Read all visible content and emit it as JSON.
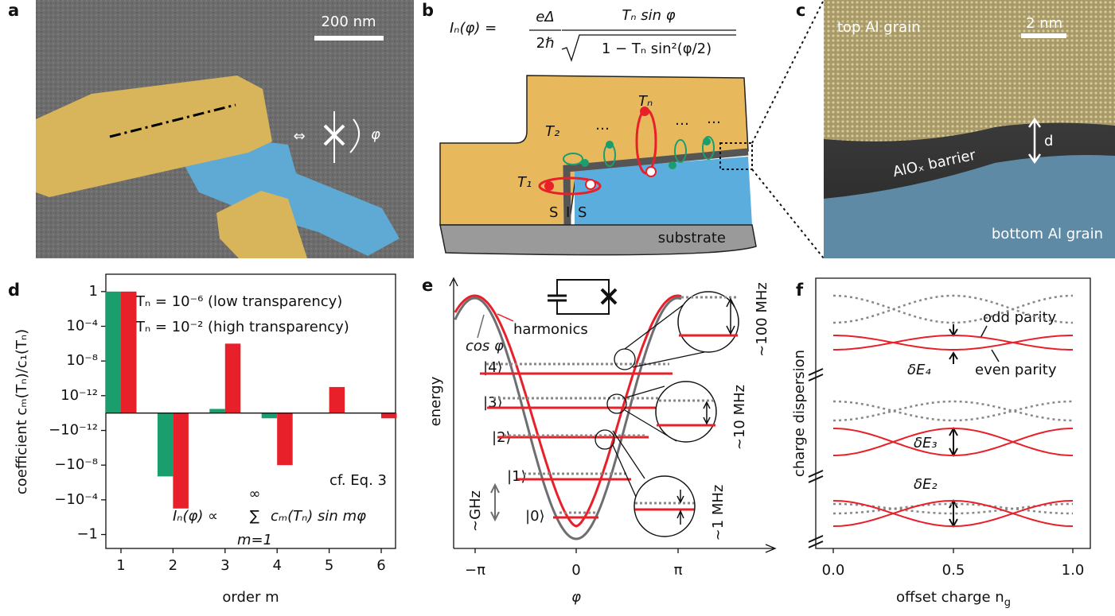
{
  "panel_labels": [
    "a",
    "b",
    "c",
    "d",
    "e",
    "f"
  ],
  "panel_a": {
    "scale_bar": "200 nm",
    "equiv": "⇔",
    "phase": "φ"
  },
  "panel_b": {
    "formula": {
      "lhs": "Iₙ(φ) =",
      "prefactor_num": "eΔ",
      "prefactor_den": "2ℏ",
      "num": "Tₙ sin φ",
      "den": "1 − Tₙ sin²(φ/2)"
    },
    "labels": {
      "t2": "T₂",
      "t1": "T₁",
      "tn": "Tₙ",
      "dots": "…",
      "s_left": "S",
      "i": "I",
      "s_right": "S",
      "substrate": "substrate"
    }
  },
  "panel_c": {
    "scale_bar": "2 nm",
    "top": "top Al grain",
    "barrier": "AlOₓ barrier",
    "bottom": "bottom Al grain",
    "thickness": "d"
  },
  "chart_data": {
    "type": "bar",
    "categories": [
      "1",
      "2",
      "3",
      "4",
      "5",
      "6"
    ],
    "series": [
      {
        "name": "Tₙ = 10⁻⁶ (low transparency)",
        "color": "#1a9e6e",
        "values": [
          1,
          -2e-07,
          2e-14,
          -3e-14,
          0,
          0
        ]
      },
      {
        "name": "Tₙ = 10⁻² (high transparency)",
        "color": "#e8202a",
        "values": [
          1,
          -0.001,
          1e-06,
          -1e-08,
          1e-11,
          -3e-14
        ]
      }
    ],
    "xlabel": "order m",
    "ylabel": "coefficient cₘ(Tₙ)/c₁(Tₙ)",
    "yscale": "symlog",
    "linthresh": 1e-14,
    "ylim": [
      -40,
      100
    ],
    "yticks": [
      1,
      {
        "value": 0.0001,
        "label": "10⁻⁴"
      },
      {
        "value": 1e-08,
        "label": "10⁻⁸"
      },
      {
        "value": 1e-12,
        "label": "10⁻¹²"
      },
      {
        "value": -1e-12,
        "label": "−10⁻¹²"
      },
      {
        "value": -1e-08,
        "label": "−10⁻⁸"
      },
      {
        "value": -0.0001,
        "label": "−10⁻⁴"
      },
      {
        "value": -1,
        "label": "−1"
      }
    ],
    "legend": "upper left",
    "annotation": "cf. Eq. 3",
    "formula": {
      "lhs": "Iₙ(φ) ∝",
      "sum": "∑",
      "upper": "∞",
      "lower": "m=1",
      "rhs": "cₘ(Tₙ) sin mφ"
    }
  },
  "panel_e": {
    "ylabel": "energy",
    "xlabel": "φ",
    "xticks": [
      "−π",
      "0",
      "π"
    ],
    "cos_label": "cos φ",
    "harmonics_label": "harmonics",
    "states": [
      "|0⟩",
      "|1⟩",
      "|2⟩",
      "|3⟩",
      "|4⟩"
    ],
    "ghz": "∼GHz",
    "zoom_labels": [
      "∼100 MHz",
      "∼10 MHz",
      "∼1 MHz"
    ]
  },
  "panel_f": {
    "ylabel": "charge dispersion",
    "xlabel": {
      "text": "offset charge n",
      "sub": "g"
    },
    "xticks": [
      "0.0",
      "0.5",
      "1.0"
    ],
    "odd": "odd parity",
    "even": "even parity",
    "gaps": [
      "δE₄",
      "δE₃",
      "δE₂"
    ]
  }
}
